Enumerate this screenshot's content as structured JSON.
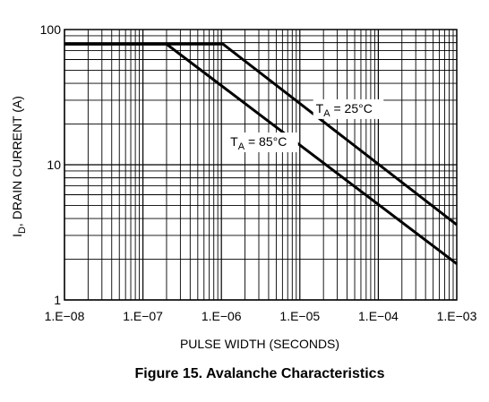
{
  "chart_data": {
    "type": "line",
    "title": "Figure 15. Avalanche Characteristics",
    "xlabel": "PULSE WIDTH (SECONDS)",
    "ylabel": "I_D, DRAIN CURRENT (A)",
    "ylabel_parts": {
      "main": "I",
      "sub": "D",
      "rest": ", DRAIN CURRENT (A)"
    },
    "x_scale": "log",
    "y_scale": "log",
    "xlim": [
      1e-08,
      0.001
    ],
    "ylim": [
      1,
      100
    ],
    "grid": true,
    "x_ticks": [
      {
        "value": 1e-08,
        "label": "1.E−08"
      },
      {
        "value": 1e-07,
        "label": "1.E−07"
      },
      {
        "value": 1e-06,
        "label": "1.E−06"
      },
      {
        "value": 1e-05,
        "label": "1.E−05"
      },
      {
        "value": 0.0001,
        "label": "1.E−04"
      },
      {
        "value": 0.001,
        "label": "1.E−03"
      }
    ],
    "y_ticks": [
      {
        "value": 1,
        "label": "1"
      },
      {
        "value": 10,
        "label": "10"
      },
      {
        "value": 100,
        "label": "100"
      }
    ],
    "series": [
      {
        "name": "T_A = 25°C",
        "label_parts": {
          "main": "T",
          "sub": "A",
          "rest": " = 25°C"
        },
        "x": [
          1e-08,
          1.05e-06,
          0.001
        ],
        "y": [
          78,
          78,
          3.6
        ]
      },
      {
        "name": "T_A = 85°C",
        "label_parts": {
          "main": "T",
          "sub": "A",
          "rest": " = 85°C"
        },
        "x": [
          1e-08,
          2e-07,
          0.001
        ],
        "y": [
          78,
          78,
          1.85
        ]
      }
    ],
    "annotations": [
      {
        "series": 0,
        "x": 1.6e-05,
        "y": 25
      },
      {
        "series": 1,
        "x": 1.3e-06,
        "y": 14.2
      }
    ]
  }
}
